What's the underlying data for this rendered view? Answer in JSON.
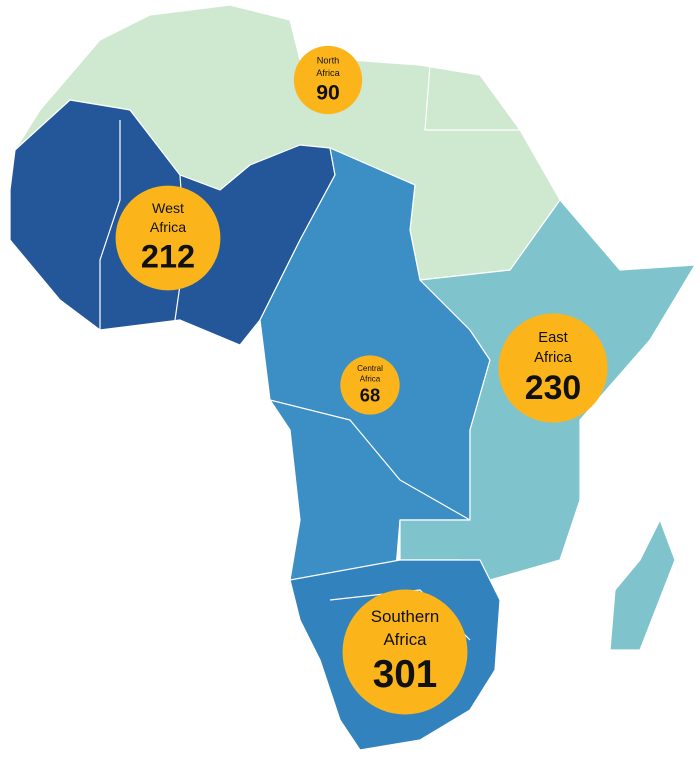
{
  "regions": [
    {
      "name": [
        "North",
        "Africa"
      ],
      "value": 90
    },
    {
      "name": [
        "West",
        "Africa"
      ],
      "value": 212
    },
    {
      "name": [
        "Central",
        "Africa"
      ],
      "value": 68
    },
    {
      "name": [
        "East",
        "Africa"
      ],
      "value": 230
    },
    {
      "name": [
        "Southern",
        "Africa"
      ],
      "value": 301
    }
  ]
}
